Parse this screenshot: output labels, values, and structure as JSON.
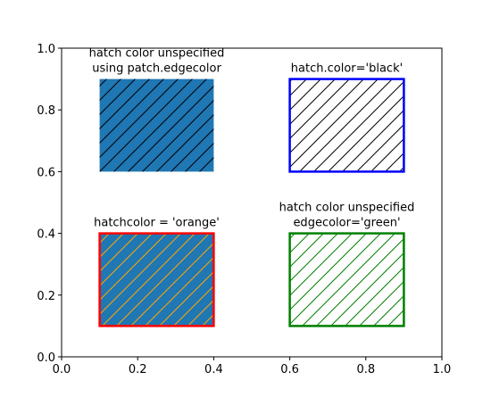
{
  "chart_data": {
    "type": "patches",
    "xlim": [
      0,
      1
    ],
    "ylim": [
      0,
      1
    ],
    "xticks": [
      {
        "value": 0,
        "label": "0.0"
      },
      {
        "value": 0.2,
        "label": "0.2"
      },
      {
        "value": 0.4,
        "label": "0.4"
      },
      {
        "value": 0.6,
        "label": "0.6"
      },
      {
        "value": 0.8,
        "label": "0.8"
      },
      {
        "value": 1,
        "label": "1.0"
      }
    ],
    "yticks": [
      {
        "value": 0,
        "label": "0.0"
      },
      {
        "value": 0.2,
        "label": "0.2"
      },
      {
        "value": 0.4,
        "label": "0.4"
      },
      {
        "value": 0.6,
        "label": "0.6"
      },
      {
        "value": 0.8,
        "label": "0.8"
      },
      {
        "value": 1,
        "label": "1.0"
      }
    ],
    "patches": [
      {
        "x": 0.1,
        "y": 0.6,
        "width": 0.3,
        "height": 0.3,
        "facecolor": "#1f77b4",
        "edgecolor": "#000000",
        "edgewidth": 0,
        "hatchcolor": "#000000",
        "label_lines": [
          "hatch color unspecified",
          "using patch.edgecolor"
        ]
      },
      {
        "x": 0.6,
        "y": 0.6,
        "width": 0.3,
        "height": 0.3,
        "facecolor": "#ffffff",
        "edgecolor": "#0000ff",
        "edgewidth": 2.5,
        "hatchcolor": "#000000",
        "label_lines": [
          "hatch.color='black'"
        ]
      },
      {
        "x": 0.1,
        "y": 0.1,
        "width": 0.3,
        "height": 0.3,
        "facecolor": "#1f77b4",
        "edgecolor": "#ff0000",
        "edgewidth": 2.5,
        "hatchcolor": "#ffa500",
        "label_lines": [
          "hatchcolor = 'orange'"
        ]
      },
      {
        "x": 0.6,
        "y": 0.1,
        "width": 0.3,
        "height": 0.3,
        "facecolor": "#ffffff",
        "edgecolor": "#008000",
        "edgewidth": 2.5,
        "hatchcolor": "#008000",
        "label_lines": [
          "hatch color unspecified",
          "edgecolor='green'"
        ]
      }
    ]
  }
}
